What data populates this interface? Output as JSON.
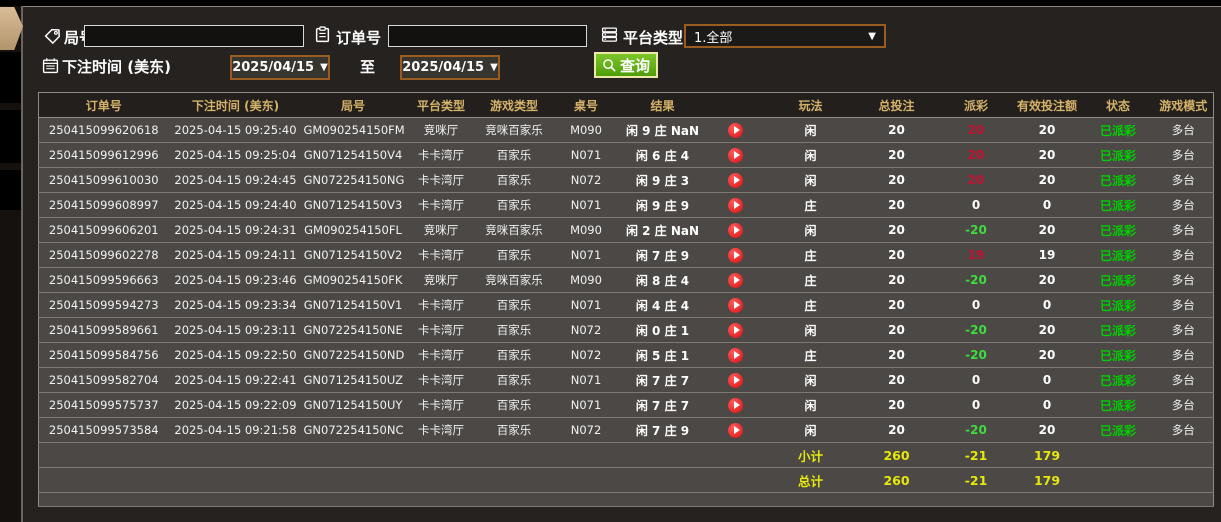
{
  "filters": {
    "round_label": "局号",
    "order_label": "订单号",
    "platform_label": "平台类型",
    "platform_value": "1.全部",
    "bet_time_label": "下注时间 (美东)",
    "date_from": "2025/04/15",
    "date_to": "2025/04/15",
    "to_label": "至",
    "search_label": "查询"
  },
  "colors": {
    "accent_gold": "#d5b269",
    "win_red": "#c41230",
    "loss_green": "#3edc3e",
    "status_green": "#00cf00",
    "total_yellow": "#e6e80a",
    "button_green": "#5fae12",
    "select_border_orange": "#9a5c1f"
  },
  "table": {
    "headers": [
      "订单号",
      "下注时间 (美东)",
      "局号",
      "平台类型",
      "游戏类型",
      "桌号",
      "结果",
      "",
      "玩法",
      "总投注",
      "派彩",
      "有效投注额",
      "状态",
      "游戏模式"
    ],
    "rows": [
      {
        "order": "250415099620618",
        "time": "2025-04-15 09:25:40",
        "round": "GM090254150FM",
        "platform": "竞咪厅",
        "game": "竞咪百家乐",
        "table_no": "M090",
        "result": "闲 9 庄 NaN",
        "play": "闲",
        "total": "20",
        "payout": "20",
        "valid": "20",
        "status": "已派彩",
        "mode": "多台"
      },
      {
        "order": "250415099612996",
        "time": "2025-04-15 09:25:04",
        "round": "GN071254150V4",
        "platform": "卡卡湾厅",
        "game": "百家乐",
        "table_no": "N071",
        "result": "闲 6 庄 4",
        "play": "闲",
        "total": "20",
        "payout": "20",
        "valid": "20",
        "status": "已派彩",
        "mode": "多台"
      },
      {
        "order": "250415099610030",
        "time": "2025-04-15 09:24:45",
        "round": "GN072254150NG",
        "platform": "卡卡湾厅",
        "game": "百家乐",
        "table_no": "N072",
        "result": "闲 9 庄 3",
        "play": "闲",
        "total": "20",
        "payout": "20",
        "valid": "20",
        "status": "已派彩",
        "mode": "多台"
      },
      {
        "order": "250415099608997",
        "time": "2025-04-15 09:24:40",
        "round": "GN071254150V3",
        "platform": "卡卡湾厅",
        "game": "百家乐",
        "table_no": "N071",
        "result": "闲 9 庄 9",
        "play": "庄",
        "total": "20",
        "payout": "0",
        "valid": "0",
        "status": "已派彩",
        "mode": "多台"
      },
      {
        "order": "250415099606201",
        "time": "2025-04-15 09:24:31",
        "round": "GM090254150FL",
        "platform": "竞咪厅",
        "game": "竞咪百家乐",
        "table_no": "M090",
        "result": "闲 2 庄 NaN",
        "play": "闲",
        "total": "20",
        "payout": "-20",
        "valid": "20",
        "status": "已派彩",
        "mode": "多台"
      },
      {
        "order": "250415099602278",
        "time": "2025-04-15 09:24:11",
        "round": "GN071254150V2",
        "platform": "卡卡湾厅",
        "game": "百家乐",
        "table_no": "N071",
        "result": "闲 7 庄 9",
        "play": "庄",
        "total": "20",
        "payout": "19",
        "valid": "19",
        "status": "已派彩",
        "mode": "多台"
      },
      {
        "order": "250415099596663",
        "time": "2025-04-15 09:23:46",
        "round": "GM090254150FK",
        "platform": "竞咪厅",
        "game": "竞咪百家乐",
        "table_no": "M090",
        "result": "闲 8 庄 4",
        "play": "庄",
        "total": "20",
        "payout": "-20",
        "valid": "20",
        "status": "已派彩",
        "mode": "多台"
      },
      {
        "order": "250415099594273",
        "time": "2025-04-15 09:23:34",
        "round": "GN071254150V1",
        "platform": "卡卡湾厅",
        "game": "百家乐",
        "table_no": "N071",
        "result": "闲 4 庄 4",
        "play": "庄",
        "total": "20",
        "payout": "0",
        "valid": "0",
        "status": "已派彩",
        "mode": "多台"
      },
      {
        "order": "250415099589661",
        "time": "2025-04-15 09:23:11",
        "round": "GN072254150NE",
        "platform": "卡卡湾厅",
        "game": "百家乐",
        "table_no": "N072",
        "result": "闲 0 庄 1",
        "play": "闲",
        "total": "20",
        "payout": "-20",
        "valid": "20",
        "status": "已派彩",
        "mode": "多台"
      },
      {
        "order": "250415099584756",
        "time": "2025-04-15 09:22:50",
        "round": "GN072254150ND",
        "platform": "卡卡湾厅",
        "game": "百家乐",
        "table_no": "N072",
        "result": "闲 5 庄 1",
        "play": "庄",
        "total": "20",
        "payout": "-20",
        "valid": "20",
        "status": "已派彩",
        "mode": "多台"
      },
      {
        "order": "250415099582704",
        "time": "2025-04-15 09:22:41",
        "round": "GN071254150UZ",
        "platform": "卡卡湾厅",
        "game": "百家乐",
        "table_no": "N071",
        "result": "闲 7 庄 7",
        "play": "闲",
        "total": "20",
        "payout": "0",
        "valid": "0",
        "status": "已派彩",
        "mode": "多台"
      },
      {
        "order": "250415099575737",
        "time": "2025-04-15 09:22:09",
        "round": "GN071254150UY",
        "platform": "卡卡湾厅",
        "game": "百家乐",
        "table_no": "N071",
        "result": "闲 7 庄 7",
        "play": "闲",
        "total": "20",
        "payout": "0",
        "valid": "0",
        "status": "已派彩",
        "mode": "多台"
      },
      {
        "order": "250415099573584",
        "time": "2025-04-15 09:21:58",
        "round": "GN072254150NC",
        "platform": "卡卡湾厅",
        "game": "百家乐",
        "table_no": "N072",
        "result": "闲 7 庄 9",
        "play": "闲",
        "total": "20",
        "payout": "-20",
        "valid": "20",
        "status": "已派彩",
        "mode": "多台"
      }
    ],
    "subtotal": {
      "label": "小计",
      "total": "260",
      "payout": "-21",
      "valid": "179"
    },
    "grand_total": {
      "label": "总计",
      "total": "260",
      "payout": "-21",
      "valid": "179"
    }
  }
}
